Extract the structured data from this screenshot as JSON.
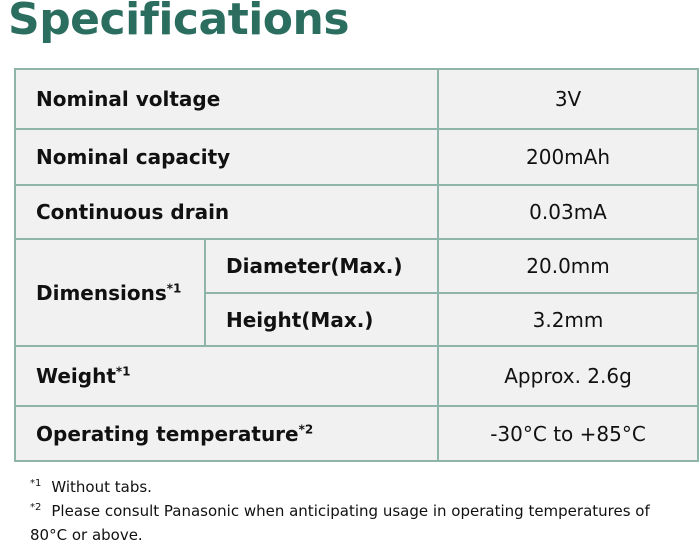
{
  "header": {
    "title": "Specifications"
  },
  "table": {
    "rows": [
      {
        "label": "Nominal voltage",
        "value": "3V"
      },
      {
        "label": "Nominal capacity",
        "value": "200mAh"
      },
      {
        "label": "Continuous drain",
        "value": "0.03mA"
      },
      {
        "label": "Dimensions",
        "note": "*1",
        "sub": [
          {
            "label": "Diameter(Max.)",
            "value": "20.0mm"
          },
          {
            "label": "Height(Max.)",
            "value": "3.2mm"
          }
        ]
      },
      {
        "label": "Weight",
        "note": "*1",
        "value": "Approx. 2.6g"
      },
      {
        "label": "Operating temperature",
        "note": "*2",
        "value": "-30°C to +85°C"
      }
    ]
  },
  "footnotes": [
    {
      "mark": "*1",
      "text": "Without tabs."
    },
    {
      "mark": "*2",
      "text": "Please consult Panasonic when anticipating usage in operating temperatures of 80°C or above."
    }
  ]
}
